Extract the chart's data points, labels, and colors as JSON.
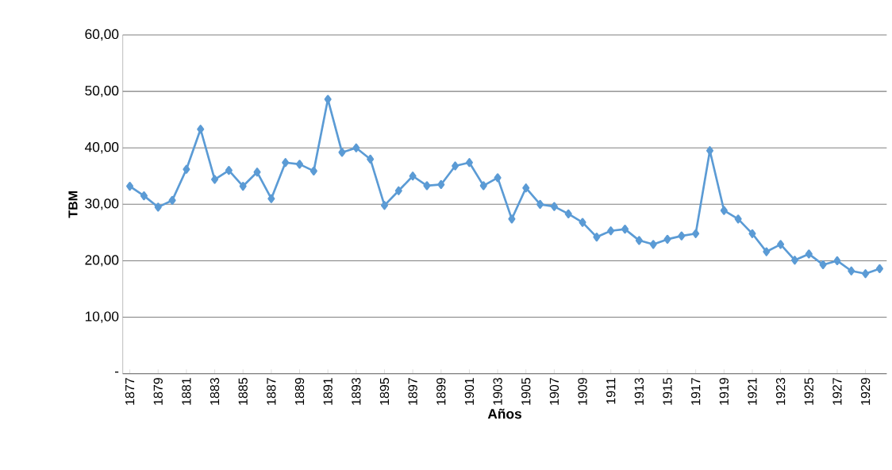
{
  "chart_data": {
    "type": "line",
    "xlabel": "Años",
    "ylabel": "TBM",
    "categories": [
      "1877",
      null,
      "1879",
      null,
      "1881",
      null,
      "1883",
      null,
      "1885",
      null,
      "1887",
      null,
      "1889",
      null,
      "1891",
      null,
      "1893",
      null,
      "1895",
      null,
      "1897",
      null,
      "1899",
      null,
      "1901",
      null,
      "1903",
      null,
      "1905",
      null,
      "1907",
      null,
      "1909",
      null,
      "1911",
      null,
      "1913",
      null,
      "1915",
      null,
      "1917",
      null,
      "1919",
      null,
      "1921",
      null,
      "1923",
      null,
      "1925",
      null,
      "1927",
      null,
      "1929",
      null
    ],
    "series": [
      {
        "color": "#5b9bd5",
        "values": [
          33.2,
          31.5,
          29.5,
          30.7,
          36.2,
          43.3,
          34.4,
          36.0,
          33.2,
          35.7,
          31.0,
          37.4,
          37.1,
          35.9,
          48.6,
          39.2,
          40.0,
          38.0,
          29.8,
          32.4,
          35.0,
          33.3,
          33.5,
          36.8,
          37.4,
          33.3,
          34.7,
          27.4,
          32.9,
          30.0,
          29.6,
          28.3,
          26.8,
          24.2,
          25.3,
          25.6,
          23.6,
          22.9,
          23.8,
          24.4,
          24.8,
          39.5,
          28.9,
          27.4,
          24.8,
          21.6,
          22.9,
          20.1,
          21.2,
          19.3,
          20.0,
          18.2,
          17.7,
          18.6
        ]
      }
    ],
    "ylim": [
      0,
      60
    ],
    "yticks": [
      {
        "value": 0,
        "label": "-"
      },
      {
        "value": 10,
        "label": "10,00"
      },
      {
        "value": 20,
        "label": "20,00"
      },
      {
        "value": 30,
        "label": "30,00"
      },
      {
        "value": 40,
        "label": "40,00"
      },
      {
        "value": 50,
        "label": "50,00"
      },
      {
        "value": 60,
        "label": "60,00"
      }
    ],
    "grid": "y",
    "marker": "diamond",
    "line_style": "solid"
  }
}
